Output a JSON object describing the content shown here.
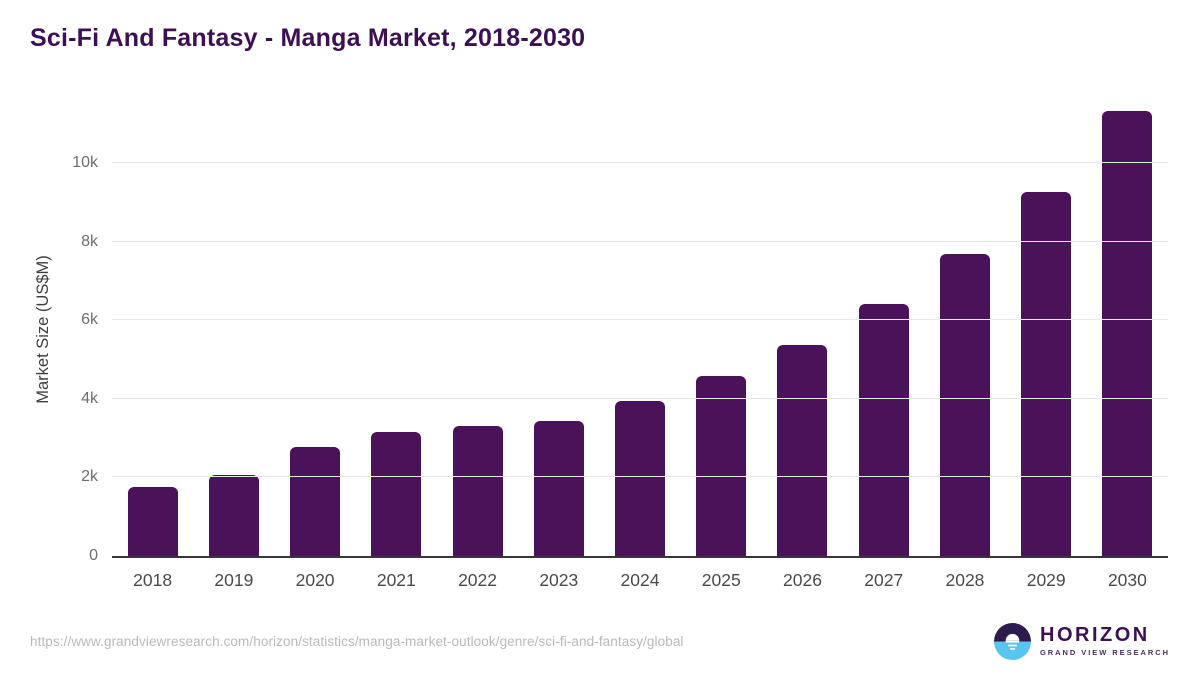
{
  "title": "Sci-Fi And Fantasy - Manga Market, 2018-2030",
  "chart_data": {
    "type": "bar",
    "categories": [
      "2018",
      "2019",
      "2020",
      "2021",
      "2022",
      "2023",
      "2024",
      "2025",
      "2026",
      "2027",
      "2028",
      "2029",
      "2030"
    ],
    "values": [
      1760,
      2050,
      2770,
      3170,
      3300,
      3450,
      3950,
      4590,
      5370,
      6410,
      7680,
      9280,
      11330
    ],
    "title": "Sci-Fi And Fantasy - Manga Market, 2018-2030",
    "xlabel": "",
    "ylabel": "Market Size (US$M)",
    "ylim": [
      0,
      11610
    ],
    "yticks": [
      {
        "value": 0,
        "label": "0"
      },
      {
        "value": 2000,
        "label": "2k"
      },
      {
        "value": 4000,
        "label": "4k"
      },
      {
        "value": 6000,
        "label": "6k"
      },
      {
        "value": 8000,
        "label": "8k"
      },
      {
        "value": 10000,
        "label": "10k"
      }
    ],
    "grid": "horizontal",
    "legend": "none",
    "bar_color": "#4a1259"
  },
  "colors": {
    "title": "#3c1053",
    "bar": "#4a1259",
    "gridline": "#e8e8e8",
    "axis_line": "#37343b",
    "y_tick": "#6e6e6e",
    "x_tick": "#4a4a4a",
    "url_text": "#b9b9b9",
    "logo_dark_purple": "#2d1a4e",
    "logo_blue": "#58c4f0"
  },
  "footer": {
    "source_url": "https://www.grandviewresearch.com/horizon/statistics/manga-market-outlook/genre/sci-fi-and-fantasy/global",
    "logo": {
      "name": "HORIZON",
      "subtitle": "GRAND VIEW RESEARCH"
    }
  }
}
